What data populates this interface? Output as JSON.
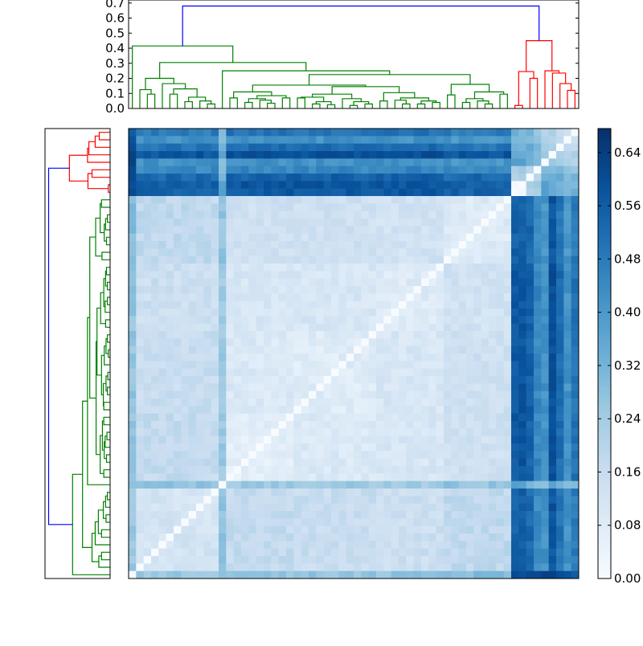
{
  "chart_data": {
    "type": "heatmap",
    "title": "",
    "n_leaves": 60,
    "colormap": "Blues",
    "value_range": [
      0.0,
      0.676
    ],
    "colorbar": {
      "ticks": [
        0.0,
        0.08,
        0.16,
        0.24,
        0.32,
        0.4,
        0.48,
        0.56,
        0.64
      ],
      "tick_labels": [
        "0.00",
        "0.08",
        "0.16",
        "0.24",
        "0.32",
        "0.40",
        "0.48",
        "0.56",
        "0.64"
      ]
    },
    "top_dendrogram": {
      "ylim": [
        0.0,
        0.72
      ],
      "ticks": [
        0.0,
        0.1,
        0.2,
        0.3,
        0.4,
        0.5,
        0.6,
        0.7
      ],
      "tick_labels": [
        "0.0",
        "0.1",
        "0.2",
        "0.3",
        "0.4",
        "0.5",
        "0.6",
        "0.7"
      ]
    },
    "left_dendrogram": {
      "xlim": [
        0.72,
        0.0
      ],
      "orientation": "left"
    },
    "tree": {
      "height": 0.68,
      "link_color": "#0000ff",
      "clusters": [
        {
          "color": "#008000",
          "node": [
            0.415,
            0,
            [
              0.305,
              [
                0.2,
                [
                  0.125,
                  0,
                  [
                    0.095,
                    0,
                    0
                  ]
                ],
                [
                  0.165,
                  0,
                  [
                    0.13,
                    [
                      0.095,
                      0,
                      0
                    ],
                    [
                      0.075,
                      [
                        0.045,
                        0,
                        0
                      ],
                      [
                        0.05,
                        0,
                        [
                          0.03,
                          0,
                          0
                        ]
                      ]
                    ]
                  ]
                ]
              ],
              [
                0.25,
                0,
                [
                  0.225,
                  [
                    0.155,
                    [
                      0.11,
                      [
                        0.07,
                        0,
                        0
                      ],
                      [
                        0.085,
                        [
                          0.065,
                          [
                            0.04,
                            0,
                            0
                          ],
                          [
                            0.055,
                            0,
                            [
                              0.035,
                              0,
                              0
                            ]
                          ]
                        ],
                        [
                          0.07,
                          0,
                          0
                        ]
                      ]
                    ],
                    [
                      0.145,
                      [
                        0.095,
                        [
                          0.075,
                          [
                            0.07,
                            0,
                            0
                          ],
                          [
                            0.045,
                            [
                              0.03,
                              0,
                              0
                            ],
                            [
                              0.025,
                              0,
                              0
                            ]
                          ]
                        ],
                        [
                          0.065,
                          0,
                          [
                            0.045,
                            [
                              0.02,
                              0,
                              0
                            ],
                            [
                              0.03,
                              0,
                              0
                            ]
                          ]
                        ]
                      ],
                      [
                        0.105,
                        [
                          0.05,
                          0,
                          0
                        ],
                        [
                          0.07,
                          [
                            0.055,
                            0,
                            [
                              0.03,
                              0,
                              0
                            ]
                          ],
                          [
                            0.05,
                            [
                              0.03,
                              0,
                              0
                            ],
                            [
                              0.04,
                              0,
                              0
                            ]
                          ]
                        ]
                      ]
                    ]
                  ],
                  [
                    0.16,
                    [
                      0.09,
                      0,
                      0
                    ],
                    [
                      0.11,
                      [
                        0.065,
                        [
                          0.04,
                          0,
                          0
                        ],
                        [
                          0.05,
                          0,
                          [
                            0.03,
                            0,
                            0
                          ]
                        ]
                      ],
                      [
                        0.095,
                        0,
                        0
                      ]
                    ]
                  ]
                ]
              ]
            ]
          ]
        },
        {
          "color": "#ff0000",
          "node": [
            0.45,
            [
              0.245,
              [
                0.02,
                0,
                0
              ],
              [
                0.2,
                0,
                0
              ]
            ],
            [
              0.25,
              0,
              [
                0.235,
                0,
                [
                  0.165,
                  0,
                  [
                    0.12,
                    0,
                    0
                  ]
                ]
              ]
            ]
          ]
        }
      ]
    },
    "leaf_groups": [
      [
        0,
        0
      ],
      [
        1,
        11
      ],
      [
        12,
        12
      ],
      [
        13,
        21
      ],
      [
        22,
        32
      ],
      [
        33,
        41
      ],
      [
        42,
        50
      ],
      [
        51,
        51
      ],
      [
        52,
        52
      ],
      [
        53,
        53
      ],
      [
        54,
        54
      ],
      [
        55,
        55
      ],
      [
        56,
        56
      ],
      [
        57,
        57
      ],
      [
        58,
        58
      ],
      [
        59,
        59
      ]
    ],
    "group_distance": [
      [
        0.0,
        0.26,
        0.3,
        0.27,
        0.27,
        0.27,
        0.3,
        0.62,
        0.62,
        0.6,
        0.58,
        0.66,
        0.64,
        0.6,
        0.56,
        0.58
      ],
      [
        0.26,
        0.12,
        0.28,
        0.17,
        0.16,
        0.15,
        0.18,
        0.55,
        0.56,
        0.53,
        0.44,
        0.42,
        0.58,
        0.5,
        0.42,
        0.48
      ],
      [
        0.3,
        0.28,
        0.0,
        0.25,
        0.25,
        0.24,
        0.27,
        0.36,
        0.36,
        0.34,
        0.3,
        0.3,
        0.38,
        0.33,
        0.3,
        0.32
      ],
      [
        0.27,
        0.17,
        0.25,
        0.07,
        0.1,
        0.11,
        0.14,
        0.57,
        0.58,
        0.55,
        0.45,
        0.42,
        0.6,
        0.52,
        0.42,
        0.5
      ],
      [
        0.27,
        0.16,
        0.25,
        0.1,
        0.08,
        0.11,
        0.14,
        0.57,
        0.58,
        0.55,
        0.45,
        0.42,
        0.6,
        0.52,
        0.42,
        0.5
      ],
      [
        0.27,
        0.15,
        0.24,
        0.11,
        0.11,
        0.09,
        0.13,
        0.57,
        0.58,
        0.55,
        0.45,
        0.42,
        0.6,
        0.52,
        0.42,
        0.5
      ],
      [
        0.3,
        0.18,
        0.27,
        0.14,
        0.14,
        0.13,
        0.09,
        0.55,
        0.56,
        0.53,
        0.44,
        0.41,
        0.58,
        0.5,
        0.41,
        0.48
      ],
      [
        0.62,
        0.55,
        0.36,
        0.57,
        0.57,
        0.57,
        0.55,
        0.0,
        0.02,
        0.22,
        0.25,
        0.38,
        0.35,
        0.32,
        0.3,
        0.32
      ],
      [
        0.62,
        0.56,
        0.36,
        0.58,
        0.58,
        0.58,
        0.56,
        0.02,
        0.0,
        0.22,
        0.26,
        0.38,
        0.36,
        0.33,
        0.3,
        0.33
      ],
      [
        0.6,
        0.53,
        0.34,
        0.55,
        0.55,
        0.55,
        0.53,
        0.22,
        0.22,
        0.0,
        0.2,
        0.3,
        0.36,
        0.33,
        0.28,
        0.3
      ],
      [
        0.58,
        0.44,
        0.3,
        0.45,
        0.45,
        0.45,
        0.44,
        0.25,
        0.26,
        0.2,
        0.0,
        0.28,
        0.32,
        0.3,
        0.25,
        0.27
      ],
      [
        0.66,
        0.42,
        0.3,
        0.42,
        0.42,
        0.42,
        0.41,
        0.38,
        0.38,
        0.3,
        0.28,
        0.0,
        0.25,
        0.22,
        0.24,
        0.2
      ],
      [
        0.64,
        0.58,
        0.38,
        0.6,
        0.6,
        0.6,
        0.58,
        0.35,
        0.36,
        0.36,
        0.32,
        0.25,
        0.0,
        0.23,
        0.23,
        0.22
      ],
      [
        0.6,
        0.5,
        0.33,
        0.52,
        0.52,
        0.52,
        0.5,
        0.32,
        0.33,
        0.33,
        0.3,
        0.22,
        0.23,
        0.0,
        0.16,
        0.15
      ],
      [
        0.56,
        0.42,
        0.3,
        0.42,
        0.42,
        0.42,
        0.41,
        0.3,
        0.3,
        0.28,
        0.25,
        0.24,
        0.23,
        0.16,
        0.0,
        0.12
      ],
      [
        0.58,
        0.48,
        0.32,
        0.5,
        0.5,
        0.5,
        0.48,
        0.32,
        0.33,
        0.3,
        0.27,
        0.2,
        0.22,
        0.15,
        0.12,
        0.0
      ]
    ],
    "diagonal_value": 0.0,
    "rows_reversed": true
  }
}
